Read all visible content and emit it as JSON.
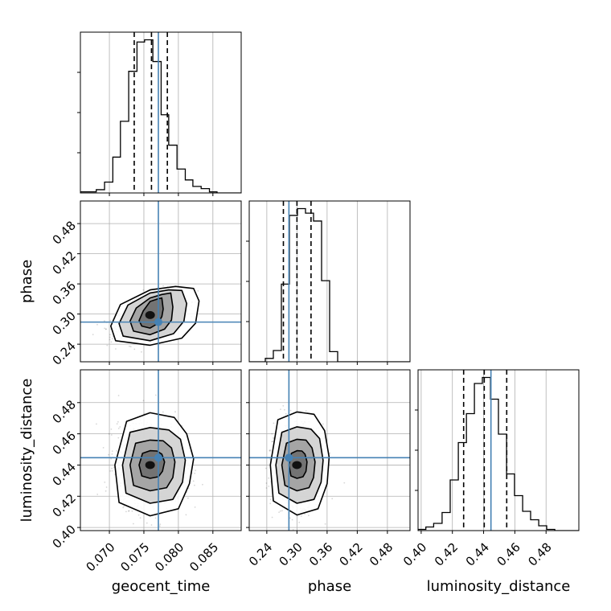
{
  "chart_data": {
    "type": "corner",
    "parameters": [
      "geocent_time",
      "phase",
      "luminosity_distance"
    ],
    "labels": {
      "geocent_time": "geocent_time",
      "phase": "phase",
      "luminosity_distance": "luminosity_distance"
    },
    "ranges": {
      "geocent_time": [
        0.0658,
        0.0891
      ],
      "phase": [
        0.205,
        0.525
      ],
      "luminosity_distance": [
        0.398,
        0.501
      ]
    },
    "ticks": {
      "geocent_time": [
        "0.070",
        "0.075",
        "0.080",
        "0.085"
      ],
      "phase": [
        "0.24",
        "0.30",
        "0.36",
        "0.42",
        "0.48"
      ],
      "luminosity_distance": [
        "0.40",
        "0.42",
        "0.44",
        "0.46",
        "0.48"
      ]
    },
    "injection": {
      "geocent_time": 0.0771,
      "phase": 0.284,
      "luminosity_distance": 0.4447
    },
    "quantiles": {
      "geocent_time": [
        0.0736,
        0.0761,
        0.0784
      ],
      "phase": [
        0.273,
        0.3,
        0.328
      ],
      "luminosity_distance": [
        0.4272,
        0.4404,
        0.4548
      ]
    },
    "histograms": {
      "geocent_time": {
        "edges": [
          0.0658,
          0.067,
          0.0681,
          0.0693,
          0.0705,
          0.0716,
          0.0728,
          0.074,
          0.0751,
          0.0763,
          0.0775,
          0.0786,
          0.0798,
          0.081,
          0.0821,
          0.0833,
          0.0845,
          0.0856,
          0.0868,
          0.088,
          0.0891
        ],
        "counts": [
          1,
          1,
          3,
          10,
          33,
          66,
          112,
          139,
          141,
          121,
          72,
          44,
          22,
          12,
          6,
          4,
          1,
          0,
          0,
          0
        ]
      },
      "phase": {
        "edges": [
          0.205,
          0.221,
          0.237,
          0.253,
          0.269,
          0.285,
          0.301,
          0.317,
          0.333,
          0.349,
          0.365,
          0.381,
          0.397,
          0.413,
          0.429,
          0.445,
          0.461,
          0.477,
          0.493,
          0.509,
          0.525
        ],
        "counts": [
          0,
          0,
          3,
          10,
          69,
          130,
          136,
          132,
          125,
          72,
          9,
          0,
          0,
          0,
          0,
          0,
          0,
          0,
          0,
          0
        ]
      },
      "luminosity_distance": {
        "edges": [
          0.398,
          0.403,
          0.408,
          0.4134,
          0.4186,
          0.4238,
          0.429,
          0.4341,
          0.4392,
          0.4444,
          0.4495,
          0.4547,
          0.4598,
          0.465,
          0.4701,
          0.4753,
          0.4804,
          0.4856,
          0.4907,
          0.4959,
          0.501
        ],
        "counts": [
          1,
          3,
          6,
          15,
          42,
          73,
          97,
          122,
          127,
          109,
          80,
          47,
          29,
          16,
          9,
          4,
          1,
          0,
          0,
          0
        ]
      }
    },
    "pairs": [
      {
        "x": "geocent_time",
        "y": "phase",
        "center": [
          0.0759,
          0.298
        ],
        "sd": [
          0.0022,
          0.02
        ],
        "rho": 0.55,
        "contours": [
          {
            "level": 0.5,
            "points": [
              [
                0.0776,
                0.332
              ],
              [
                0.077,
                0.33
              ],
              [
                0.0759,
                0.325
              ],
              [
                0.0749,
                0.306
              ],
              [
                0.0743,
                0.287
              ],
              [
                0.0747,
                0.276
              ],
              [
                0.0759,
                0.272
              ],
              [
                0.077,
                0.281
              ],
              [
                0.0776,
                0.295
              ],
              [
                0.0778,
                0.31
              ]
            ]
          },
          {
            "level": 1.0,
            "points": [
              [
                0.0789,
                0.342
              ],
              [
                0.0776,
                0.339
              ],
              [
                0.0759,
                0.332
              ],
              [
                0.0739,
                0.312
              ],
              [
                0.073,
                0.286
              ],
              [
                0.0735,
                0.266
              ],
              [
                0.0759,
                0.259
              ],
              [
                0.078,
                0.27
              ],
              [
                0.079,
                0.288
              ],
              [
                0.0792,
                0.314
              ]
            ]
          },
          {
            "level": 1.5,
            "points": [
              [
                0.0805,
                0.347
              ],
              [
                0.0786,
                0.348
              ],
              [
                0.0759,
                0.342
              ],
              [
                0.0727,
                0.318
              ],
              [
                0.0714,
                0.281
              ],
              [
                0.072,
                0.256
              ],
              [
                0.0759,
                0.247
              ],
              [
                0.0793,
                0.261
              ],
              [
                0.0808,
                0.286
              ],
              [
                0.0812,
                0.321
              ]
            ]
          },
          {
            "level": 2.0,
            "points": [
              [
                0.0822,
                0.351
              ],
              [
                0.0796,
                0.355
              ],
              [
                0.0759,
                0.348
              ],
              [
                0.0716,
                0.319
              ],
              [
                0.0702,
                0.276
              ],
              [
                0.0709,
                0.247
              ],
              [
                0.0759,
                0.238
              ],
              [
                0.0805,
                0.252
              ],
              [
                0.0825,
                0.282
              ],
              [
                0.083,
                0.326
              ]
            ]
          }
        ]
      },
      {
        "x": "geocent_time",
        "y": "luminosity_distance",
        "center": [
          0.0759,
          0.44
        ],
        "sd": [
          0.0023,
          0.0125
        ],
        "rho": 0.0,
        "contours": [
          {
            "level": 0.5,
            "points": [
              [
                0.0776,
                0.447
              ],
              [
                0.0769,
                0.449
              ],
              [
                0.0759,
                0.4492
              ],
              [
                0.0748,
                0.4475
              ],
              [
                0.0743,
                0.44
              ],
              [
                0.0747,
                0.433
              ],
              [
                0.0759,
                0.4315
              ],
              [
                0.0771,
                0.4325
              ],
              [
                0.0777,
                0.436
              ],
              [
                0.078,
                0.442
              ]
            ]
          },
          {
            "level": 1.0,
            "points": [
              [
                0.079,
                0.451
              ],
              [
                0.0778,
                0.4555
              ],
              [
                0.0759,
                0.456
              ],
              [
                0.0738,
                0.454
              ],
              [
                0.073,
                0.44
              ],
              [
                0.0735,
                0.427
              ],
              [
                0.0759,
                0.4235
              ],
              [
                0.0783,
                0.4255
              ],
              [
                0.0792,
                0.432
              ],
              [
                0.0795,
                0.442
              ]
            ]
          },
          {
            "level": 1.5,
            "points": [
              [
                0.0803,
                0.4565
              ],
              [
                0.0786,
                0.4625
              ],
              [
                0.0759,
                0.464
              ],
              [
                0.073,
                0.461
              ],
              [
                0.0719,
                0.44
              ],
              [
                0.0724,
                0.422
              ],
              [
                0.0759,
                0.4155
              ],
              [
                0.0792,
                0.418
              ],
              [
                0.0806,
                0.429
              ],
              [
                0.081,
                0.443
              ]
            ]
          },
          {
            "level": 2.0,
            "points": [
              [
                0.0812,
                0.46
              ],
              [
                0.0794,
                0.4705
              ],
              [
                0.0759,
                0.4735
              ],
              [
                0.0725,
                0.468
              ],
              [
                0.0708,
                0.44
              ],
              [
                0.0714,
                0.416
              ],
              [
                0.0759,
                0.4075
              ],
              [
                0.08,
                0.412
              ],
              [
                0.0816,
                0.428
              ],
              [
                0.0822,
                0.444
              ]
            ]
          }
        ]
      },
      {
        "x": "phase",
        "y": "luminosity_distance",
        "center": [
          0.3,
          0.44
        ],
        "sd": [
          0.022,
          0.0125
        ],
        "rho": 0.0,
        "contours": [
          {
            "level": 0.5,
            "points": [
              [
                0.316,
                0.447
              ],
              [
                0.31,
                0.449
              ],
              [
                0.3,
                0.4492
              ],
              [
                0.289,
                0.4475
              ],
              [
                0.284,
                0.44
              ],
              [
                0.288,
                0.433
              ],
              [
                0.3,
                0.4315
              ],
              [
                0.312,
                0.4325
              ],
              [
                0.318,
                0.436
              ],
              [
                0.32,
                0.442
              ]
            ]
          },
          {
            "level": 1.0,
            "points": [
              [
                0.33,
                0.451
              ],
              [
                0.318,
                0.456
              ],
              [
                0.3,
                0.4565
              ],
              [
                0.279,
                0.454
              ],
              [
                0.27,
                0.44
              ],
              [
                0.276,
                0.427
              ],
              [
                0.3,
                0.4235
              ],
              [
                0.324,
                0.4255
              ],
              [
                0.333,
                0.432
              ],
              [
                0.336,
                0.442
              ]
            ]
          },
          {
            "level": 1.5,
            "points": [
              [
                0.345,
                0.457
              ],
              [
                0.328,
                0.463
              ],
              [
                0.3,
                0.4645
              ],
              [
                0.27,
                0.461
              ],
              [
                0.258,
                0.44
              ],
              [
                0.264,
                0.422
              ],
              [
                0.3,
                0.4155
              ],
              [
                0.334,
                0.418
              ],
              [
                0.348,
                0.429
              ],
              [
                0.352,
                0.443
              ]
            ]
          },
          {
            "level": 2.0,
            "points": [
              [
                0.355,
                0.462
              ],
              [
                0.334,
                0.4725
              ],
              [
                0.3,
                0.474
              ],
              [
                0.262,
                0.469
              ],
              [
                0.247,
                0.44
              ],
              [
                0.253,
                0.417
              ],
              [
                0.3,
                0.408
              ],
              [
                0.342,
                0.412
              ],
              [
                0.36,
                0.428
              ],
              [
                0.364,
                0.445
              ]
            ]
          }
        ]
      }
    ],
    "colors": {
      "truth": "#4682b4",
      "hist": "#000000",
      "grid": "#b0b0b0",
      "frame": "#808080"
    },
    "grid": true
  }
}
